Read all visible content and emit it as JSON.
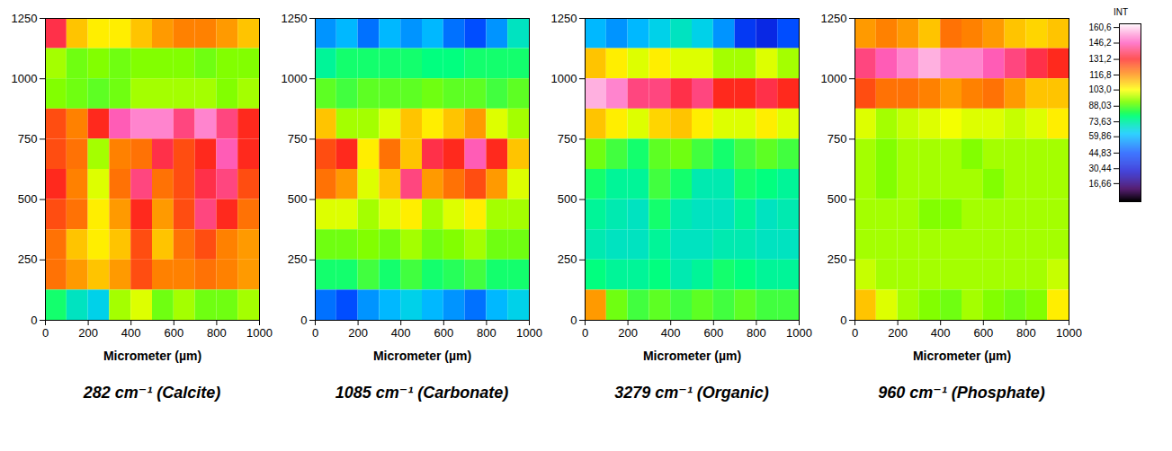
{
  "chart_data": [
    {
      "type": "heatmap",
      "title": "282 cm⁻¹ (Calcite)",
      "x_label": "Micrometer (µm)",
      "xlim": [
        0,
        1000
      ],
      "ylim": [
        0,
        1250
      ],
      "xticks": [
        0,
        200,
        400,
        600,
        800,
        1000
      ],
      "yticks": [
        0,
        250,
        500,
        750,
        1000,
        1250
      ],
      "x": [
        50,
        150,
        250,
        350,
        450,
        550,
        650,
        750,
        850,
        950
      ],
      "y": [
        1187.5,
        1062.5,
        937.5,
        812.5,
        687.5,
        562.5,
        437.5,
        312.5,
        187.5,
        62.5
      ],
      "values": [
        [
          135,
          110,
          105,
          105,
          110,
          115,
          118,
          118,
          115,
          110
        ],
        [
          95,
          90,
          92,
          90,
          92,
          92,
          92,
          90,
          92,
          92
        ],
        [
          92,
          90,
          88,
          90,
          95,
          95,
          95,
          95,
          92,
          95
        ],
        [
          125,
          118,
          130,
          145,
          150,
          150,
          140,
          150,
          140,
          130
        ],
        [
          125,
          120,
          95,
          118,
          120,
          135,
          125,
          130,
          145,
          130
        ],
        [
          130,
          118,
          100,
          120,
          140,
          120,
          125,
          135,
          140,
          125
        ],
        [
          125,
          120,
          105,
          115,
          130,
          115,
          125,
          140,
          130,
          120
        ],
        [
          120,
          110,
          105,
          110,
          125,
          110,
          120,
          125,
          118,
          115
        ],
        [
          120,
          115,
          110,
          115,
          125,
          118,
          118,
          120,
          118,
          115
        ],
        [
          80,
          70,
          65,
          95,
          100,
          90,
          95,
          90,
          90,
          95
        ]
      ]
    },
    {
      "type": "heatmap",
      "title": "1085 cm⁻¹ (Carbonate)",
      "x_label": "Micrometer (µm)",
      "xlim": [
        0,
        1000
      ],
      "ylim": [
        0,
        1250
      ],
      "xticks": [
        0,
        200,
        400,
        600,
        800,
        1000
      ],
      "yticks": [
        0,
        250,
        500,
        750,
        1000,
        1250
      ],
      "x": [
        50,
        150,
        250,
        350,
        450,
        550,
        650,
        750,
        850,
        950
      ],
      "y": [
        1187.5,
        1062.5,
        937.5,
        812.5,
        687.5,
        562.5,
        437.5,
        312.5,
        187.5,
        62.5
      ],
      "values": [
        [
          55,
          60,
          50,
          60,
          55,
          60,
          50,
          45,
          55,
          70
        ],
        [
          75,
          80,
          80,
          80,
          80,
          78,
          78,
          80,
          80,
          80
        ],
        [
          88,
          85,
          88,
          88,
          88,
          90,
          88,
          88,
          85,
          88
        ],
        [
          110,
          95,
          95,
          100,
          110,
          105,
          110,
          115,
          100,
          95
        ],
        [
          125,
          130,
          105,
          120,
          110,
          135,
          130,
          145,
          130,
          110
        ],
        [
          120,
          115,
          100,
          110,
          140,
          115,
          120,
          125,
          115,
          100
        ],
        [
          100,
          100,
          95,
          100,
          105,
          95,
          100,
          105,
          95,
          95
        ],
        [
          90,
          90,
          92,
          90,
          95,
          90,
          92,
          95,
          90,
          90
        ],
        [
          80,
          80,
          85,
          80,
          85,
          80,
          82,
          85,
          80,
          80
        ],
        [
          50,
          45,
          55,
          60,
          65,
          60,
          55,
          50,
          60,
          65
        ]
      ]
    },
    {
      "type": "heatmap",
      "title": "3279 cm⁻¹ (Organic)",
      "x_label": "Micrometer (µm)",
      "xlim": [
        0,
        1000
      ],
      "ylim": [
        0,
        1250
      ],
      "xticks": [
        0,
        200,
        400,
        600,
        800,
        1000
      ],
      "yticks": [
        0,
        250,
        500,
        750,
        1000,
        1250
      ],
      "x": [
        50,
        150,
        250,
        350,
        450,
        550,
        650,
        750,
        850,
        950
      ],
      "y": [
        1187.5,
        1062.5,
        937.5,
        812.5,
        687.5,
        562.5,
        437.5,
        312.5,
        187.5,
        62.5
      ],
      "values": [
        [
          60,
          55,
          60,
          65,
          70,
          65,
          55,
          40,
          35,
          45
        ],
        [
          110,
          105,
          100,
          105,
          100,
          100,
          95,
          95,
          100,
          95
        ],
        [
          155,
          150,
          140,
          140,
          135,
          140,
          130,
          130,
          135,
          130
        ],
        [
          110,
          105,
          100,
          108,
          110,
          105,
          100,
          100,
          105,
          100
        ],
        [
          90,
          85,
          80,
          88,
          90,
          85,
          80,
          85,
          88,
          85
        ],
        [
          80,
          75,
          75,
          85,
          80,
          72,
          72,
          80,
          78,
          75
        ],
        [
          75,
          72,
          70,
          80,
          72,
          70,
          70,
          75,
          70,
          72
        ],
        [
          72,
          70,
          70,
          75,
          70,
          70,
          72,
          72,
          70,
          70
        ],
        [
          78,
          75,
          75,
          78,
          72,
          75,
          80,
          78,
          75,
          75
        ],
        [
          115,
          90,
          85,
          88,
          85,
          88,
          85,
          88,
          85,
          85
        ]
      ]
    },
    {
      "type": "heatmap",
      "title": "960 cm⁻¹ (Phosphate)",
      "x_label": "Micrometer (µm)",
      "xlim": [
        0,
        1000
      ],
      "ylim": [
        0,
        1250
      ],
      "xticks": [
        0,
        200,
        400,
        600,
        800,
        1000
      ],
      "yticks": [
        0,
        250,
        500,
        750,
        1000,
        1250
      ],
      "x": [
        50,
        150,
        250,
        350,
        450,
        550,
        650,
        750,
        850,
        950
      ],
      "y": [
        1187.5,
        1062.5,
        937.5,
        812.5,
        687.5,
        562.5,
        437.5,
        312.5,
        187.5,
        62.5
      ],
      "values": [
        [
          115,
          118,
          115,
          110,
          120,
          118,
          115,
          110,
          108,
          110
        ],
        [
          140,
          145,
          150,
          155,
          150,
          150,
          145,
          140,
          135,
          130
        ],
        [
          125,
          120,
          120,
          118,
          115,
          118,
          120,
          115,
          110,
          110
        ],
        [
          100,
          95,
          98,
          100,
          102,
          100,
          100,
          98,
          100,
          105
        ],
        [
          95,
          92,
          95,
          95,
          95,
          92,
          95,
          95,
          95,
          95
        ],
        [
          95,
          92,
          95,
          95,
          95,
          95,
          92,
          95,
          95,
          95
        ],
        [
          95,
          95,
          95,
          92,
          92,
          95,
          95,
          95,
          95,
          95
        ],
        [
          95,
          95,
          95,
          95,
          95,
          95,
          95,
          95,
          95,
          95
        ],
        [
          98,
          95,
          95,
          95,
          95,
          95,
          95,
          95,
          95,
          98
        ],
        [
          110,
          100,
          95,
          92,
          90,
          95,
          92,
          90,
          92,
          105
        ]
      ],
      "colorbar": {
        "label": "INT",
        "range": [
          0,
          164
        ],
        "ticks": [
          {
            "value": 160.6,
            "label": "160,6"
          },
          {
            "value": 146.2,
            "label": "146,2"
          },
          {
            "value": 131.2,
            "label": "131,2"
          },
          {
            "value": 116.8,
            "label": "116,8"
          },
          {
            "value": 103.0,
            "label": "103,0"
          },
          {
            "value": 88.03,
            "label": "88,03"
          },
          {
            "value": 73.63,
            "label": "73,63"
          },
          {
            "value": 59.86,
            "label": "59,86"
          },
          {
            "value": 44.83,
            "label": "44,83"
          },
          {
            "value": 30.44,
            "label": "30,44"
          },
          {
            "value": 16.66,
            "label": "16,66"
          }
        ]
      }
    }
  ]
}
